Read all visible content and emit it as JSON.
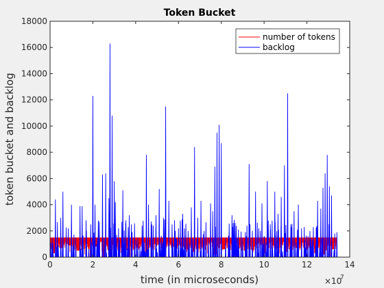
{
  "chart_data": {
    "type": "line",
    "title": "Token Bucket",
    "xlabel": "time (in microseconds)",
    "ylabel": "token bucket and backlog",
    "x_exponent_label": "×10",
    "x_exponent_power": "7",
    "xlim": [
      0,
      14
    ],
    "ylim": [
      0,
      18000
    ],
    "xticks": [
      0,
      2,
      4,
      6,
      8,
      10,
      12,
      14
    ],
    "yticks": [
      0,
      2000,
      4000,
      6000,
      8000,
      10000,
      12000,
      14000,
      16000,
      18000
    ],
    "xtick_labels": [
      "0",
      "2",
      "4",
      "6",
      "8",
      "10",
      "12",
      "14"
    ],
    "ytick_labels": [
      "0",
      "2000",
      "4000",
      "6000",
      "8000",
      "10000",
      "12000",
      "14000",
      "16000",
      "18000"
    ],
    "grid": false,
    "legend_position": "top-right",
    "series": [
      {
        "name": "number of tokens",
        "color": "#ff0000",
        "upper": 1500,
        "x_range": [
          0,
          13.4
        ],
        "dips": [
          [
            0.2,
            300
          ],
          [
            0.5,
            700
          ],
          [
            0.9,
            900
          ],
          [
            1.3,
            500
          ],
          [
            1.7,
            1000
          ],
          [
            2.1,
            800
          ],
          [
            2.5,
            0
          ],
          [
            2.8,
            0
          ],
          [
            3.2,
            600
          ],
          [
            3.6,
            900
          ],
          [
            4.1,
            700
          ],
          [
            4.5,
            300
          ],
          [
            4.9,
            1000
          ],
          [
            5.3,
            200
          ],
          [
            5.8,
            800
          ],
          [
            6.2,
            1100
          ],
          [
            6.7,
            400
          ],
          [
            7.1,
            900
          ],
          [
            7.7,
            200
          ],
          [
            8.1,
            600
          ],
          [
            8.6,
            1000
          ],
          [
            9.1,
            500
          ],
          [
            9.5,
            800
          ],
          [
            10.0,
            300
          ],
          [
            10.5,
            900
          ],
          [
            11.0,
            400
          ],
          [
            11.5,
            700
          ],
          [
            12.0,
            1000
          ],
          [
            12.4,
            300
          ],
          [
            12.8,
            200
          ],
          [
            13.2,
            600
          ]
        ]
      },
      {
        "name": "backlog",
        "color": "#0000ff",
        "x_range": [
          0,
          13.4
        ],
        "peaks": [
          [
            0.1,
            1500
          ],
          [
            0.25,
            4400
          ],
          [
            0.5,
            3000
          ],
          [
            0.6,
            5000
          ],
          [
            0.85,
            2200
          ],
          [
            1.0,
            4000
          ],
          [
            1.2,
            1500
          ],
          [
            1.4,
            3900
          ],
          [
            1.5,
            3900
          ],
          [
            1.7,
            2000
          ],
          [
            1.9,
            2500
          ],
          [
            2.0,
            12300
          ],
          [
            2.1,
            4000
          ],
          [
            2.3,
            2700
          ],
          [
            2.45,
            6300
          ],
          [
            2.6,
            6400
          ],
          [
            2.75,
            4500
          ],
          [
            2.8,
            16300
          ],
          [
            2.9,
            10800
          ],
          [
            3.0,
            5800
          ],
          [
            3.05,
            4200
          ],
          [
            3.2,
            2200
          ],
          [
            3.4,
            5100
          ],
          [
            3.55,
            1800
          ],
          [
            3.7,
            3200
          ],
          [
            3.8,
            2500
          ],
          [
            4.1,
            1500
          ],
          [
            4.3,
            2400
          ],
          [
            4.5,
            7800
          ],
          [
            4.6,
            4000
          ],
          [
            4.75,
            2500
          ],
          [
            4.95,
            3200
          ],
          [
            5.1,
            5200
          ],
          [
            5.3,
            3000
          ],
          [
            5.4,
            11500
          ],
          [
            5.55,
            4300
          ],
          [
            5.7,
            2500
          ],
          [
            5.85,
            2000
          ],
          [
            6.0,
            2200
          ],
          [
            6.2,
            3300
          ],
          [
            6.45,
            2000
          ],
          [
            6.6,
            3800
          ],
          [
            6.75,
            8400
          ],
          [
            6.9,
            3000
          ],
          [
            7.05,
            4300
          ],
          [
            7.2,
            2000
          ],
          [
            7.4,
            1500
          ],
          [
            7.5,
            4100
          ],
          [
            7.6,
            3500
          ],
          [
            7.7,
            6900
          ],
          [
            7.8,
            9500
          ],
          [
            7.9,
            10100
          ],
          [
            8.0,
            8700
          ],
          [
            8.2,
            1500
          ],
          [
            8.5,
            3200
          ],
          [
            8.8,
            2100
          ],
          [
            9.0,
            1500
          ],
          [
            9.2,
            2400
          ],
          [
            9.3,
            7100
          ],
          [
            9.45,
            2000
          ],
          [
            9.6,
            5000
          ],
          [
            9.75,
            2200
          ],
          [
            9.9,
            4100
          ],
          [
            10.0,
            1600
          ],
          [
            10.15,
            5800
          ],
          [
            10.3,
            2100
          ],
          [
            10.5,
            5000
          ],
          [
            10.65,
            3300
          ],
          [
            10.8,
            4600
          ],
          [
            10.95,
            7000
          ],
          [
            11.1,
            12500
          ],
          [
            11.25,
            2500
          ],
          [
            11.4,
            3500
          ],
          [
            11.6,
            4000
          ],
          [
            11.75,
            2200
          ],
          [
            11.9,
            1300
          ],
          [
            12.05,
            1600
          ],
          [
            12.3,
            2300
          ],
          [
            12.5,
            4300
          ],
          [
            12.65,
            3700
          ],
          [
            12.75,
            5300
          ],
          [
            12.85,
            6400
          ],
          [
            12.95,
            7800
          ],
          [
            13.05,
            5400
          ],
          [
            13.15,
            4700
          ],
          [
            13.3,
            1800
          ],
          [
            13.4,
            1900
          ]
        ]
      }
    ]
  }
}
